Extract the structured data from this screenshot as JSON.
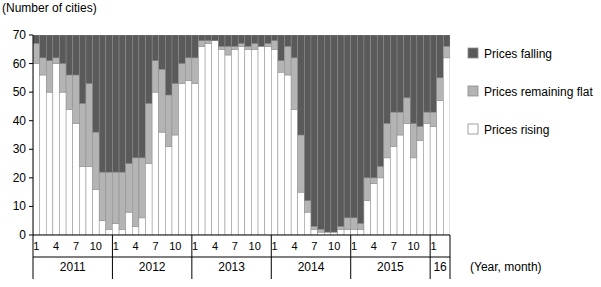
{
  "chart_data": {
    "type": "bar",
    "stacked": true,
    "y_label": "(Number of cities)",
    "x_label": "(Year, month)",
    "categories": [
      "1",
      null,
      null,
      "4",
      null,
      null,
      "7",
      null,
      null,
      "10",
      null,
      null,
      "1",
      null,
      null,
      "4",
      null,
      null,
      "7",
      null,
      null,
      "10",
      null,
      null,
      "1",
      null,
      null,
      "4",
      null,
      null,
      "7",
      null,
      null,
      "10",
      null,
      null,
      "1",
      null,
      null,
      "4",
      null,
      null,
      "7",
      null,
      null,
      "10",
      null,
      null,
      "1",
      null,
      null,
      "4",
      null,
      null,
      "7",
      null,
      null,
      "10",
      null,
      null,
      "1",
      null,
      null
    ],
    "x_groups": [
      {
        "label": "2011",
        "count": 12
      },
      {
        "label": "2012",
        "count": 12
      },
      {
        "label": "2013",
        "count": 12
      },
      {
        "label": "2014",
        "count": 12
      },
      {
        "label": "2015",
        "count": 12
      },
      {
        "label": "16",
        "count": 3
      }
    ],
    "series": [
      {
        "name": "Prices rising",
        "color": "#ffffff",
        "values": [
          60,
          56,
          50,
          60,
          50,
          44,
          39,
          24,
          24,
          16,
          5,
          2,
          4,
          2,
          8,
          3,
          6,
          25,
          50,
          36,
          31,
          35,
          53,
          54,
          53,
          66,
          67,
          68,
          65,
          63,
          65,
          66,
          65,
          65,
          66,
          66,
          65,
          57,
          56,
          44,
          15,
          8,
          2,
          1,
          1,
          1,
          2,
          2,
          2,
          2,
          12,
          18,
          20,
          27,
          31,
          35,
          39,
          27,
          33,
          39,
          38,
          47,
          62
        ]
      },
      {
        "name": "Prices remaining flat",
        "color": "#b4b4b4",
        "values": [
          7,
          6,
          11,
          2,
          10,
          12,
          17,
          22,
          29,
          20,
          17,
          20,
          18,
          20,
          17,
          24,
          21,
          21,
          11,
          22,
          18,
          18,
          7,
          8,
          9,
          2,
          1,
          0,
          1,
          3,
          1,
          1,
          1,
          2,
          0,
          1,
          3,
          4,
          10,
          18,
          20,
          4,
          1,
          1,
          0,
          0,
          1,
          4,
          4,
          2,
          8,
          2,
          4,
          12,
          12,
          8,
          9,
          12,
          5,
          4,
          5,
          8,
          4
        ]
      },
      {
        "name": "Prices falling",
        "color": "#5a5a5a",
        "values": [
          3,
          8,
          9,
          8,
          10,
          14,
          14,
          24,
          17,
          34,
          48,
          48,
          48,
          48,
          45,
          43,
          43,
          24,
          9,
          12,
          21,
          17,
          10,
          8,
          8,
          2,
          2,
          2,
          4,
          4,
          4,
          3,
          4,
          3,
          4,
          3,
          2,
          9,
          4,
          8,
          35,
          58,
          67,
          68,
          69,
          69,
          67,
          64,
          64,
          66,
          50,
          50,
          46,
          31,
          27,
          27,
          22,
          31,
          32,
          27,
          27,
          15,
          4
        ]
      }
    ],
    "ylim": [
      0,
      70
    ],
    "yticks": [
      0,
      10,
      20,
      30,
      40,
      50,
      60,
      70
    ],
    "legend": "right",
    "grid": false
  }
}
